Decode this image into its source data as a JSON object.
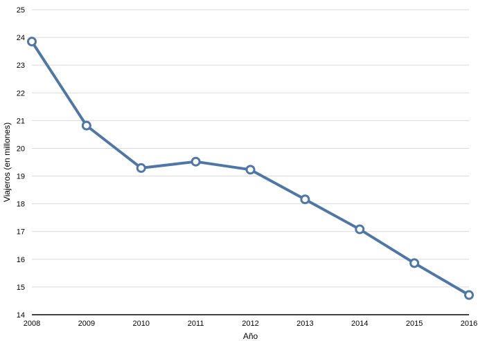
{
  "chart_data": {
    "type": "line",
    "title": "",
    "xlabel": "Año",
    "ylabel": "Viajeros (en millones)",
    "x": [
      "2008",
      "2009",
      "2010",
      "2011",
      "2012",
      "2013",
      "2014",
      "2015",
      "2016"
    ],
    "series": [
      {
        "values": [
          23.85,
          20.82,
          19.29,
          19.52,
          19.23,
          18.16,
          17.08,
          15.86,
          14.71
        ]
      }
    ],
    "ylim": [
      14,
      25
    ],
    "yticks": [
      "14",
      "15",
      "16",
      "17",
      "18",
      "19",
      "20",
      "21",
      "22",
      "23",
      "24",
      "25"
    ],
    "grid": "horizontal",
    "legend": "none",
    "colors": {
      "line": "#4e77a8",
      "marker_fill": "#ffffff",
      "grid": "#d9d9d9",
      "axis": "#000000"
    }
  }
}
